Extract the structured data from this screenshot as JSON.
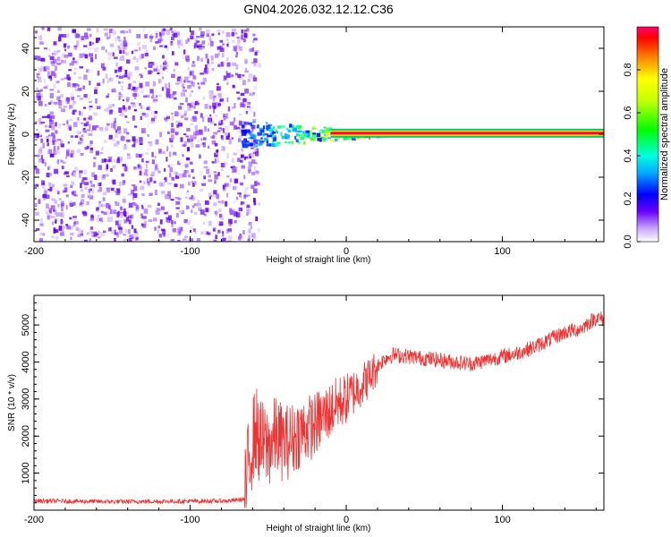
{
  "title": "GN04.2026.032.12.12.C36",
  "chart_data": [
    {
      "type": "heatmap",
      "title": "GN04.2026.032.12.12.C36",
      "xlabel": "Height of straight line (km)",
      "ylabel": "Frequency (Hz)",
      "xlim": [
        -200,
        165
      ],
      "ylim": [
        -50,
        50
      ],
      "xticks": [
        -200,
        -100,
        0,
        100
      ],
      "xtick_labels": [
        "-200",
        "-100",
        "0",
        "100"
      ],
      "yticks": [
        -40,
        -20,
        0,
        20,
        40
      ],
      "ytick_labels": [
        "-40",
        "-20",
        "0",
        "20",
        "40"
      ],
      "noise_region_x": [
        -200,
        -60
      ],
      "signal_line": {
        "x_start": -65,
        "x_end": 165,
        "frequency_hz": 0.5
      },
      "colorbar": {
        "label": "Normalized spectral amplitude",
        "range": [
          0,
          1
        ],
        "ticks": [
          0.0,
          0.2,
          0.4,
          0.6,
          0.8
        ],
        "tick_labels": [
          "0.0",
          "0.2",
          "0.4",
          "0.6",
          "0.8"
        ]
      }
    },
    {
      "type": "line",
      "xlabel": "Height of straight line (km)",
      "ylabel": "SNR (10 * v/v)",
      "xlim": [
        -200,
        165
      ],
      "ylim": [
        0,
        5800
      ],
      "xticks": [
        -200,
        -100,
        0,
        100
      ],
      "xtick_labels": [
        "-200",
        "-100",
        "0",
        "100"
      ],
      "yticks": [
        1000,
        2000,
        3000,
        4000,
        5000
      ],
      "ytick_labels": [
        "1000",
        "2000",
        "3000",
        "4000",
        "5000"
      ],
      "series": [
        {
          "name": "SNR",
          "color": "#ee3333",
          "x": [
            -200,
            -150,
            -100,
            -75,
            -65,
            -62,
            -58,
            -55,
            -50,
            -45,
            -40,
            -35,
            -30,
            -25,
            -20,
            -18,
            -15,
            -10,
            -5,
            0,
            5,
            10,
            15,
            20,
            25,
            30,
            40,
            50,
            60,
            70,
            80,
            90,
            100,
            110,
            120,
            130,
            140,
            150,
            160,
            165
          ],
          "values": [
            250,
            230,
            240,
            250,
            300,
            1500,
            2200,
            1800,
            1700,
            2000,
            1800,
            1900,
            2100,
            2200,
            2300,
            2400,
            2500,
            2700,
            2900,
            3000,
            3200,
            3400,
            3600,
            3900,
            4100,
            4200,
            4150,
            4100,
            4050,
            4000,
            3950,
            4050,
            4150,
            4250,
            4400,
            4600,
            4800,
            4900,
            5200,
            5150
          ]
        }
      ]
    }
  ]
}
